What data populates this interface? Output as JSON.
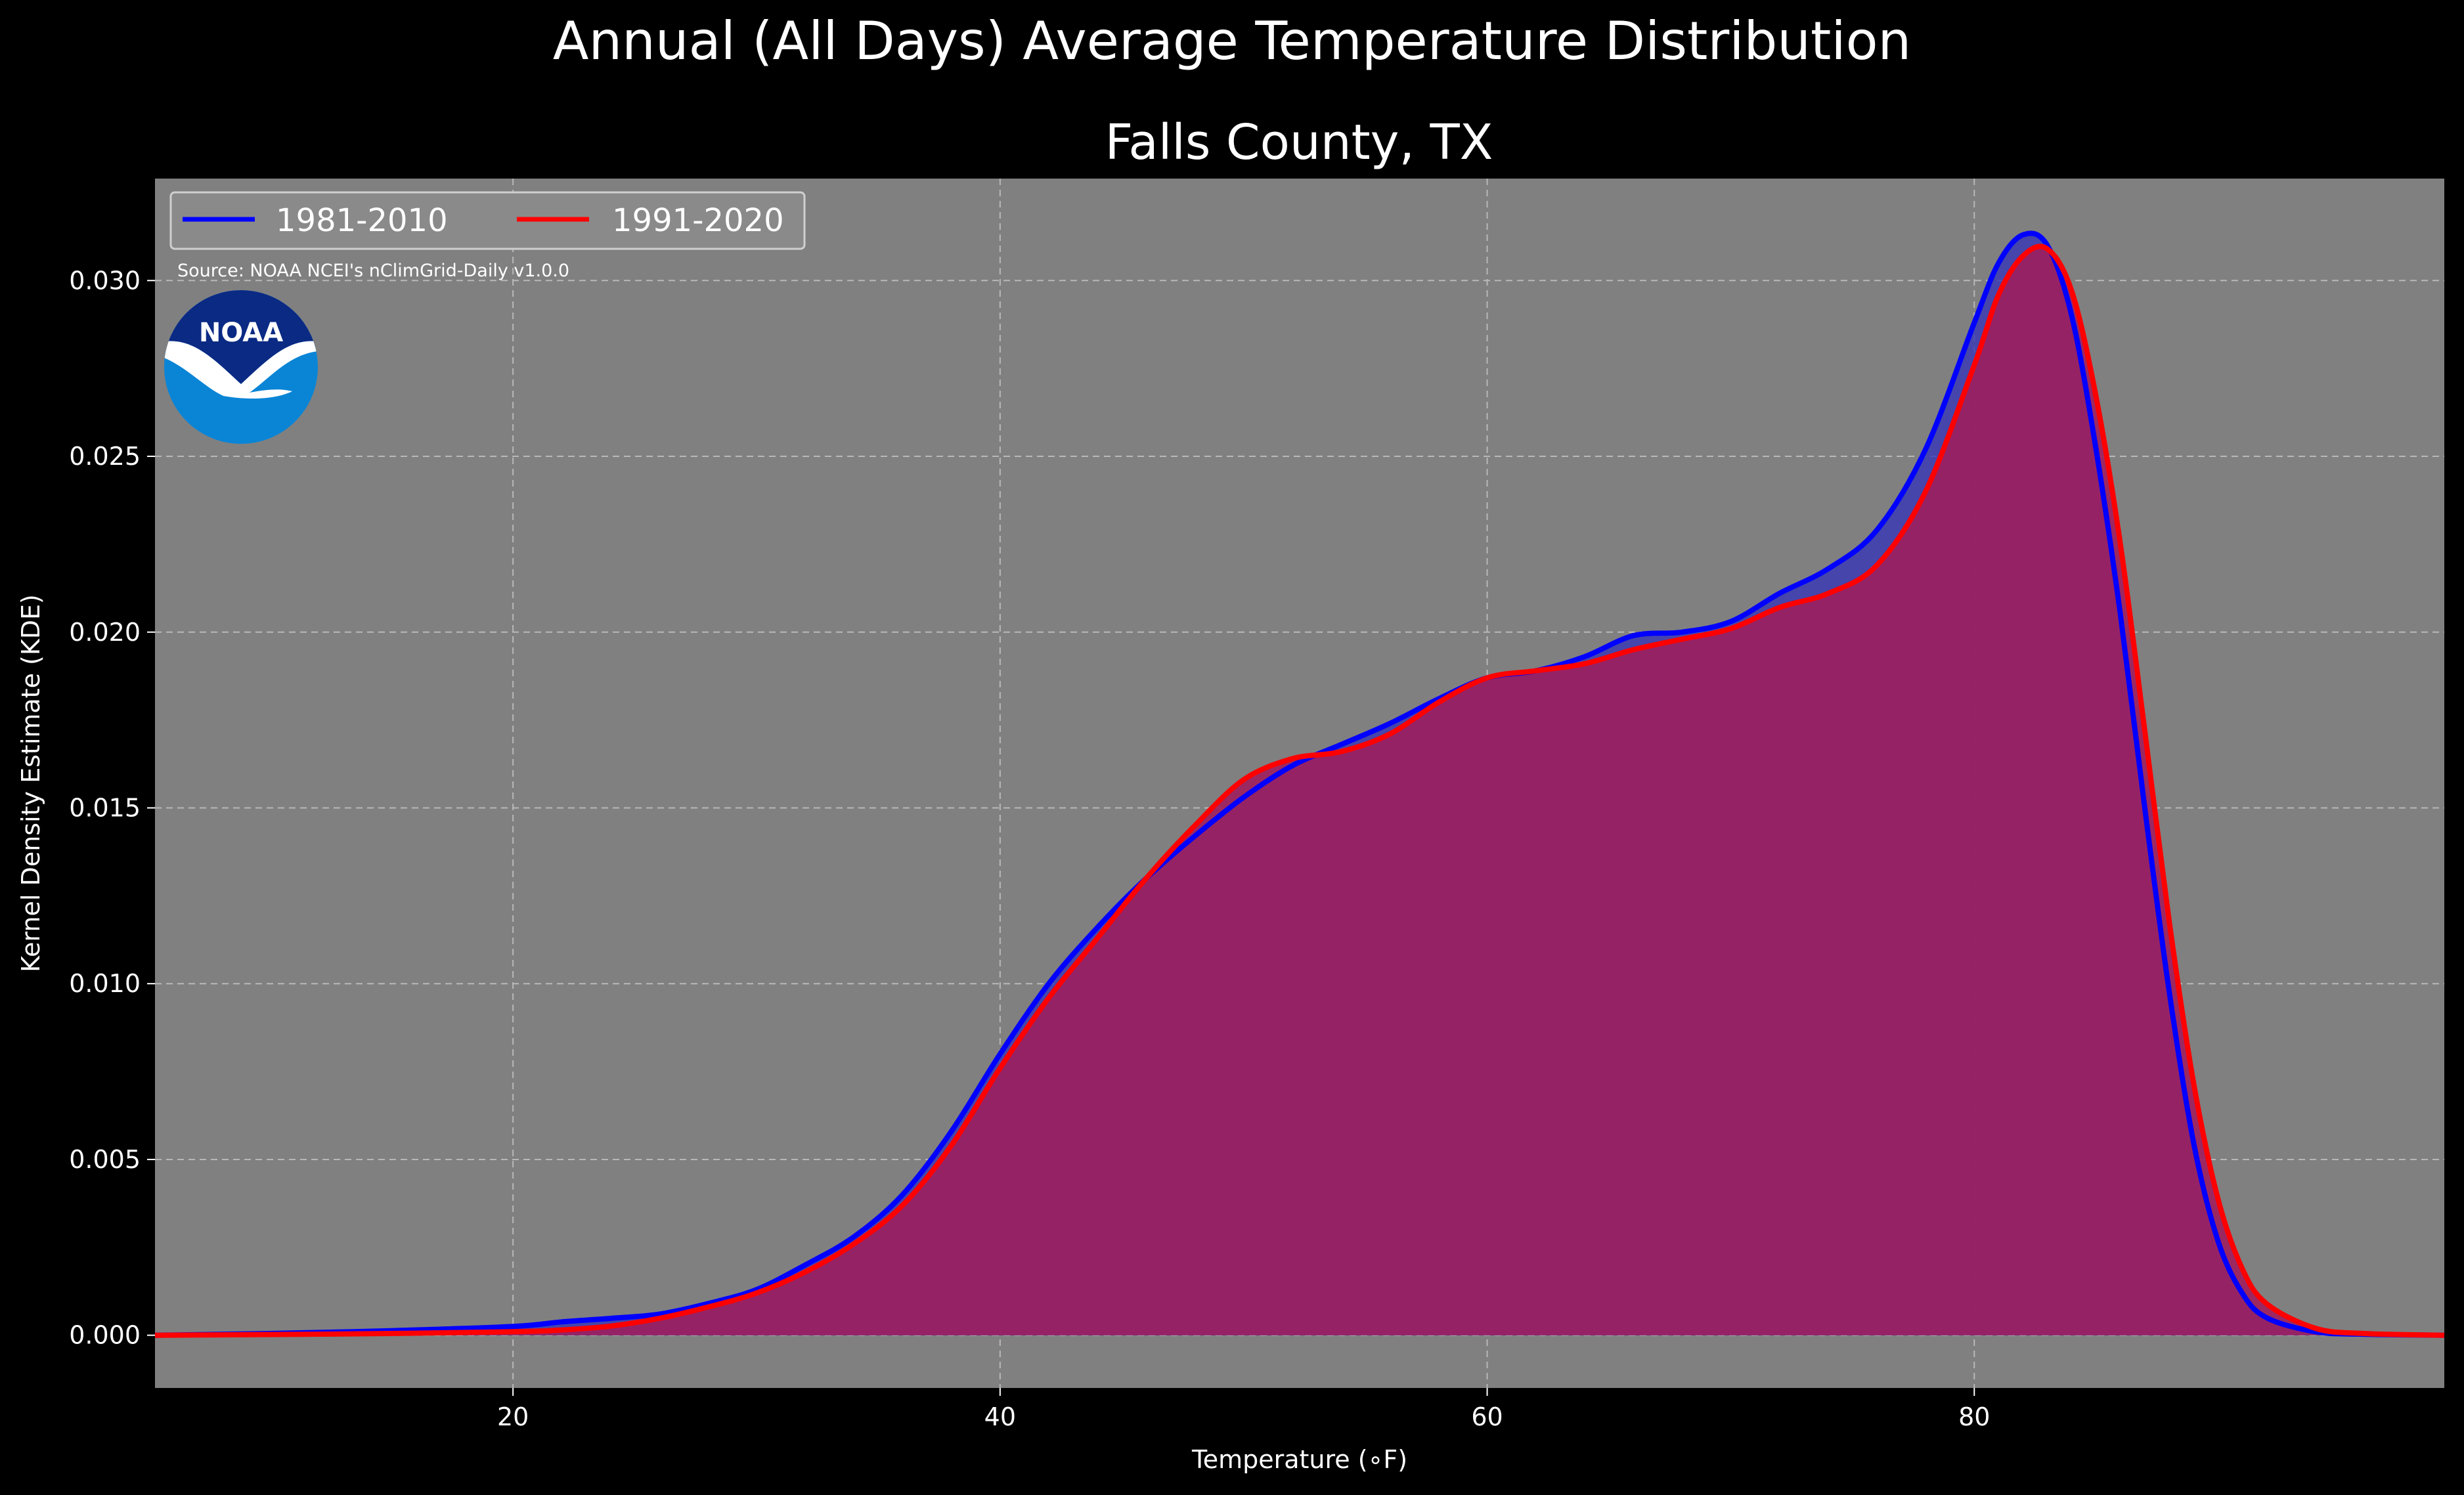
{
  "chart_data": {
    "type": "area",
    "title": "Annual (All Days) Average Temperature Distribution",
    "subtitle": "Falls County, TX",
    "xlabel": "Temperature (∘F)",
    "ylabel": "Kernel Density Estimate (KDE)",
    "xlim": [
      5.3,
      99.3
    ],
    "ylim": [
      -0.0015,
      0.0329
    ],
    "x_ticks": [
      {
        "value": 20,
        "label": "20"
      },
      {
        "value": 40,
        "label": "40"
      },
      {
        "value": 60,
        "label": "60"
      },
      {
        "value": 80,
        "label": "80"
      }
    ],
    "y_ticks": [
      {
        "value": 0.0,
        "label": "0.000"
      },
      {
        "value": 0.005,
        "label": "0.005"
      },
      {
        "value": 0.01,
        "label": "0.010"
      },
      {
        "value": 0.015,
        "label": "0.015"
      },
      {
        "value": 0.02,
        "label": "0.020"
      },
      {
        "value": 0.025,
        "label": "0.025"
      },
      {
        "value": 0.03,
        "label": "0.030"
      }
    ],
    "grid": true,
    "legend_position": "top-left",
    "annotation": "Source: NOAA NCEI's nClimGrid-Daily v1.0.0",
    "series": [
      {
        "name": "1981-2010",
        "color": "#0000ff",
        "fill": "#3434b8",
        "points": [
          [
            5.3,
            0.0
          ],
          [
            10,
            5e-05
          ],
          [
            15,
            0.00013
          ],
          [
            20,
            0.00025
          ],
          [
            22,
            0.00038
          ],
          [
            24,
            0.00048
          ],
          [
            26,
            0.0006
          ],
          [
            28,
            0.0009
          ],
          [
            30,
            0.0013
          ],
          [
            32,
            0.002
          ],
          [
            34,
            0.0028
          ],
          [
            36,
            0.004
          ],
          [
            38,
            0.0058
          ],
          [
            40,
            0.008
          ],
          [
            42,
            0.01
          ],
          [
            44,
            0.0116
          ],
          [
            46,
            0.013
          ],
          [
            48,
            0.0142
          ],
          [
            50,
            0.0153
          ],
          [
            52,
            0.0162
          ],
          [
            54,
            0.0168
          ],
          [
            56,
            0.0174
          ],
          [
            58,
            0.0181
          ],
          [
            60,
            0.0187
          ],
          [
            62,
            0.0189
          ],
          [
            64,
            0.0193
          ],
          [
            66,
            0.0199
          ],
          [
            68,
            0.02
          ],
          [
            70,
            0.0203
          ],
          [
            72,
            0.0211
          ],
          [
            74,
            0.0218
          ],
          [
            76,
            0.0229
          ],
          [
            78,
            0.0252
          ],
          [
            80,
            0.0288
          ],
          [
            81,
            0.0305
          ],
          [
            82,
            0.0313
          ],
          [
            83,
            0.031
          ],
          [
            84,
            0.029
          ],
          [
            85,
            0.0252
          ],
          [
            86,
            0.0205
          ],
          [
            87,
            0.015
          ],
          [
            88,
            0.0098
          ],
          [
            89,
            0.0055
          ],
          [
            90,
            0.0027
          ],
          [
            91,
            0.0012
          ],
          [
            92,
            0.0005
          ],
          [
            94,
            0.0001
          ],
          [
            96,
            3e-05
          ],
          [
            99.3,
            0.0
          ]
        ]
      },
      {
        "name": "1991-2020",
        "color": "#ff0000",
        "fill": "#9e1e5e",
        "points": [
          [
            5.3,
            0.0
          ],
          [
            10,
            2e-05
          ],
          [
            15,
            5e-05
          ],
          [
            20,
            0.0001
          ],
          [
            22,
            0.00015
          ],
          [
            24,
            0.00026
          ],
          [
            26,
            0.00048
          ],
          [
            28,
            0.0008
          ],
          [
            30,
            0.0012
          ],
          [
            32,
            0.0018
          ],
          [
            34,
            0.0026
          ],
          [
            36,
            0.0037
          ],
          [
            38,
            0.0054
          ],
          [
            40,
            0.0076
          ],
          [
            42,
            0.0096
          ],
          [
            44,
            0.0113
          ],
          [
            46,
            0.013
          ],
          [
            48,
            0.0145
          ],
          [
            50,
            0.0158
          ],
          [
            52,
            0.0164
          ],
          [
            54,
            0.0166
          ],
          [
            56,
            0.0171
          ],
          [
            58,
            0.018
          ],
          [
            60,
            0.0187
          ],
          [
            62,
            0.0189
          ],
          [
            64,
            0.0191
          ],
          [
            66,
            0.0195
          ],
          [
            68,
            0.0198
          ],
          [
            70,
            0.0201
          ],
          [
            72,
            0.0207
          ],
          [
            74,
            0.0211
          ],
          [
            76,
            0.0219
          ],
          [
            78,
            0.024
          ],
          [
            80,
            0.0276
          ],
          [
            81,
            0.0296
          ],
          [
            82,
            0.0307
          ],
          [
            83,
            0.0309
          ],
          [
            84,
            0.0297
          ],
          [
            85,
            0.0267
          ],
          [
            86,
            0.0225
          ],
          [
            87,
            0.0172
          ],
          [
            88,
            0.0118
          ],
          [
            89,
            0.0072
          ],
          [
            90,
            0.0039
          ],
          [
            91,
            0.0019
          ],
          [
            92,
            0.0009
          ],
          [
            94,
            0.0002
          ],
          [
            96,
            5e-05
          ],
          [
            99.3,
            0.0
          ]
        ]
      }
    ]
  }
}
